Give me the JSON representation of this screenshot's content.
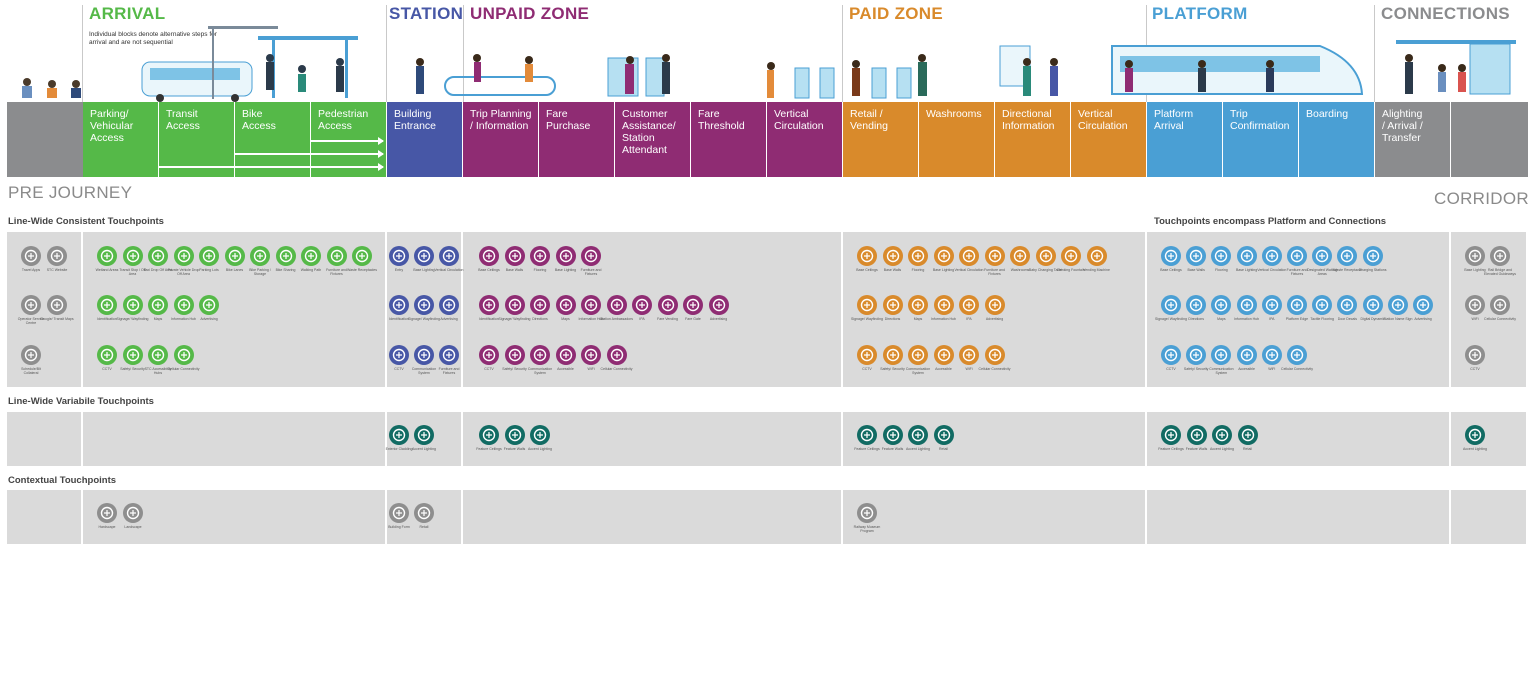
{
  "zones": {
    "arrival": "ARRIVAL",
    "station": "STATION",
    "unpaid": "UNPAID ZONE",
    "paid": "PAID ZONE",
    "platform": "PLATFORM",
    "connections": "CONNECTIONS"
  },
  "note": "Individual blocks denote alternative steps for arrival and are not sequential",
  "blocks": [
    {
      "label": "Parking/\nVehicular\nAccess"
    },
    {
      "label": "Transit\nAccess"
    },
    {
      "label": "Bike\nAccess"
    },
    {
      "label": "Pedestrian\nAccess"
    },
    {
      "label": "Building\nEntrance"
    },
    {
      "label": "Trip Planning\n/ Information"
    },
    {
      "label": "Fare\nPurchase"
    },
    {
      "label": "Customer\nAssistance/\nStation\nAttendant"
    },
    {
      "label": "Fare\nThreshold"
    },
    {
      "label": "Vertical\nCirculation"
    },
    {
      "label": "Retail /\nVending"
    },
    {
      "label": "Washrooms"
    },
    {
      "label": "Directional\nInformation"
    },
    {
      "label": "Vertical\nCirculation"
    },
    {
      "label": "Platform\nArrival"
    },
    {
      "label": "Trip\nConfirmation"
    },
    {
      "label": "Boarding"
    },
    {
      "label": "Alighting\n/ Arrival /\nTransfer"
    }
  ],
  "pre_journey": "PRE JOURNEY",
  "corridor": "CORRIDOR",
  "sections": {
    "consistent": "Line-Wide Consistent Touchpoints",
    "platform_note": "Touchpoints encompass Platform and Connections",
    "variable": "Line-Wide Variabile Touchpoints",
    "contextual": "Contextual Touchpoints"
  },
  "colors": {
    "arrival": "#55b948",
    "station": "#4757a6",
    "unpaid": "#8f2c73",
    "paid": "#d98a2b",
    "platform": "#4a9fd4",
    "connections": "#8b8c8e",
    "teal": "#116b63",
    "grey_icon": "#8e8e8e"
  },
  "icons": {
    "pre": [
      [
        "Travel Apps",
        "STC Website"
      ],
      [
        "Operator Service Centre",
        "Google/ Transit Maps"
      ],
      [
        "Schedule/Blt Collateral"
      ]
    ],
    "arrival": [
      [
        "Wetland Areas",
        "Transit Stop / Off Area",
        "Taxi Drop Off Area",
        "Private Vehicle Drop Off Area",
        "Parking Lots",
        "Bike Lanes",
        "Bike Parking / Storage",
        "Bike Sharing",
        "Walking Path",
        "Furniture and Fixtures",
        "Waste Receptacles"
      ],
      [
        "Identification",
        "Signage/ Wayfinding",
        "Maps",
        "Information Hub",
        "Advertising"
      ],
      [
        "CCTV",
        "Safety/ Security",
        "STC Accessibility Hubs",
        "Cellular Connectivity"
      ]
    ],
    "station": [
      [
        "Entry",
        "Base Lighting",
        "Vertical Circulation"
      ],
      [
        "Identification",
        "Signage/ Wayfinding",
        "Advertising"
      ],
      [
        "CCTV",
        "Communication System",
        "Furniture and Fixtures"
      ]
    ],
    "unpaid": [
      [
        "Base Ceilings",
        "Base Walls",
        "Flooring",
        "Base Lighting",
        "Furniture and Fixtures"
      ],
      [
        "Identification",
        "Signage/ Wayfinding",
        "Directions",
        "Maps",
        "Information Hub",
        "Station Ambassadors",
        "IPA",
        "Fare Vending",
        "Fare Gate",
        "Advertising"
      ],
      [
        "CCTV",
        "Safety/ Security",
        "Communication System",
        "Accessible",
        "WiFi",
        "Cellular Connectivity"
      ]
    ],
    "paid": [
      [
        "Base Ceilings",
        "Base Walls",
        "Flooring",
        "Base Lighting",
        "Vertical Circulation",
        "Furniture and Fixtures",
        "Washrooms",
        "Baby Changing Table",
        "Drinking Fountain",
        "Vending Machine"
      ],
      [
        "Signage/ Wayfinding",
        "Directions",
        "Maps",
        "Information Hub",
        "IPA",
        "Advertising"
      ],
      [
        "CCTV",
        "Safety/ Security",
        "Communication System",
        "Accessible",
        "WiFi",
        "Cellular Connectivity"
      ]
    ],
    "platform": [
      [
        "Base Ceilings",
        "Base Walls",
        "Flooring",
        "Base Lighting",
        "Vertical Circulation",
        "Furniture and Fixtures",
        "Designated Waiting Areas",
        "Waste Receptacle",
        "Charging Stations"
      ],
      [
        "Signage/ Wayfinding",
        "Directions",
        "Maps",
        "Information Hub",
        "IPA",
        "Platform Edge",
        "Tactile Flooring",
        "Door Decals",
        "Digital Dynamic",
        "Station Name Sign",
        "Advertising"
      ],
      [
        "CCTV",
        "Safety/ Security",
        "Communication System",
        "Accessible",
        "WiFi",
        "Cellular Connectivity"
      ]
    ],
    "connections": [
      [
        "Base Lighting",
        "Rail Bridge and Elevated Guideways"
      ],
      [
        "WiFi",
        "Cellular Connectivity"
      ],
      [
        "CCTV"
      ]
    ],
    "var_station": [
      "Exterior Cladding",
      "Accent Lighting"
    ],
    "var_unpaid": [
      "Feature Ceilings",
      "Feature Walls",
      "Accent Lighting"
    ],
    "var_paid": [
      "Feature Ceilings",
      "Feature Walls",
      "Accent Lighting",
      "Retail"
    ],
    "var_platform": [
      "Feature Ceilings",
      "Feature Walls",
      "Accent Lighting",
      "Retail"
    ],
    "var_connections": [
      "Accent Lighting"
    ],
    "ctx_arrival": [
      "Hardscape",
      "Landscape"
    ],
    "ctx_station": [
      "Building Form",
      "Retail"
    ],
    "ctx_paid": [
      "Railway Museum Program"
    ]
  }
}
